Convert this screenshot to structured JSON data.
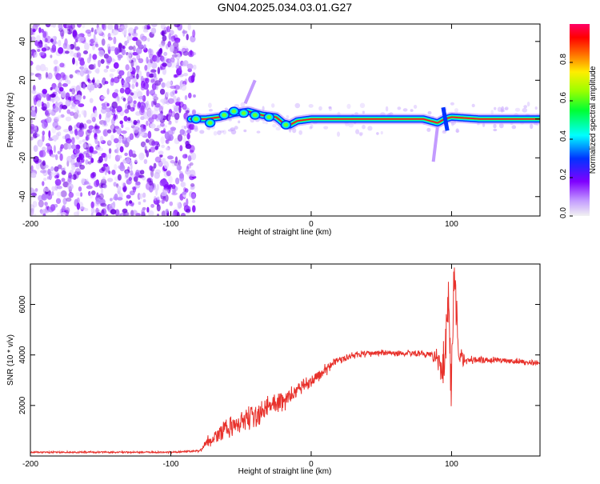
{
  "title": "GN04.2025.034.03.01.G27",
  "colors": {
    "frame": "#000000",
    "snr_line": "#e8312b",
    "scatter_purple": "#7f00ff",
    "ridge_red": "#ff0033"
  },
  "chart_data": [
    {
      "type": "heatmap",
      "name": "spectrogram",
      "xlabel": "Height of straight line (km)",
      "ylabel": "Frequency (Hz)",
      "xlim": [
        -200,
        163
      ],
      "ylim": [
        -50,
        49
      ],
      "xticks": [
        "-200",
        "-100",
        "0",
        "100"
      ],
      "yticks": [
        "-40",
        "-20",
        "0",
        "20",
        "40"
      ],
      "noise_region": [
        -200,
        -85
      ],
      "ridge": {
        "x": [
          -86,
          -75,
          -65,
          -55,
          -45,
          -35,
          -25,
          -20,
          -15,
          -10,
          0,
          20,
          40,
          60,
          80,
          90,
          95,
          100,
          120,
          163
        ],
        "y": [
          0,
          0,
          1,
          3,
          4,
          2,
          1,
          -2,
          -3,
          -1,
          0,
          0,
          0,
          0,
          0,
          -2,
          0,
          1,
          0,
          0
        ]
      },
      "colorbar": {
        "label": "Normalized spectral amplitude",
        "range": [
          0,
          1
        ],
        "ticks": [
          "0.0",
          "0.2",
          "0.4",
          "0.6",
          "0.8"
        ]
      }
    },
    {
      "type": "line",
      "name": "snr",
      "xlabel": "Height of straight line (km)",
      "ylabel": "SNR (10 * v/v)",
      "xlim": [
        -200,
        163
      ],
      "ylim": [
        0,
        7600
      ],
      "xticks": [
        "-200",
        "-100",
        "0",
        "100"
      ],
      "yticks": [
        "2000",
        "4000",
        "6000"
      ],
      "series": [
        {
          "name": "SNR",
          "x": [
            -200,
            -150,
            -100,
            -80,
            -75,
            -60,
            -40,
            -20,
            0,
            20,
            30,
            50,
            80,
            90,
            95,
            98,
            100,
            102,
            105,
            110,
            130,
            163
          ],
          "y": [
            150,
            150,
            150,
            200,
            500,
            1100,
            1600,
            2200,
            3000,
            3800,
            4000,
            4100,
            4050,
            3900,
            3500,
            6000,
            3000,
            7500,
            3800,
            3800,
            3800,
            3700
          ],
          "amplitude": [
            40,
            40,
            40,
            60,
            300,
            500,
            550,
            500,
            350,
            250,
            200,
            150,
            150,
            500,
            1500,
            1800,
            2500,
            2500,
            800,
            200,
            150,
            150
          ]
        }
      ]
    }
  ]
}
